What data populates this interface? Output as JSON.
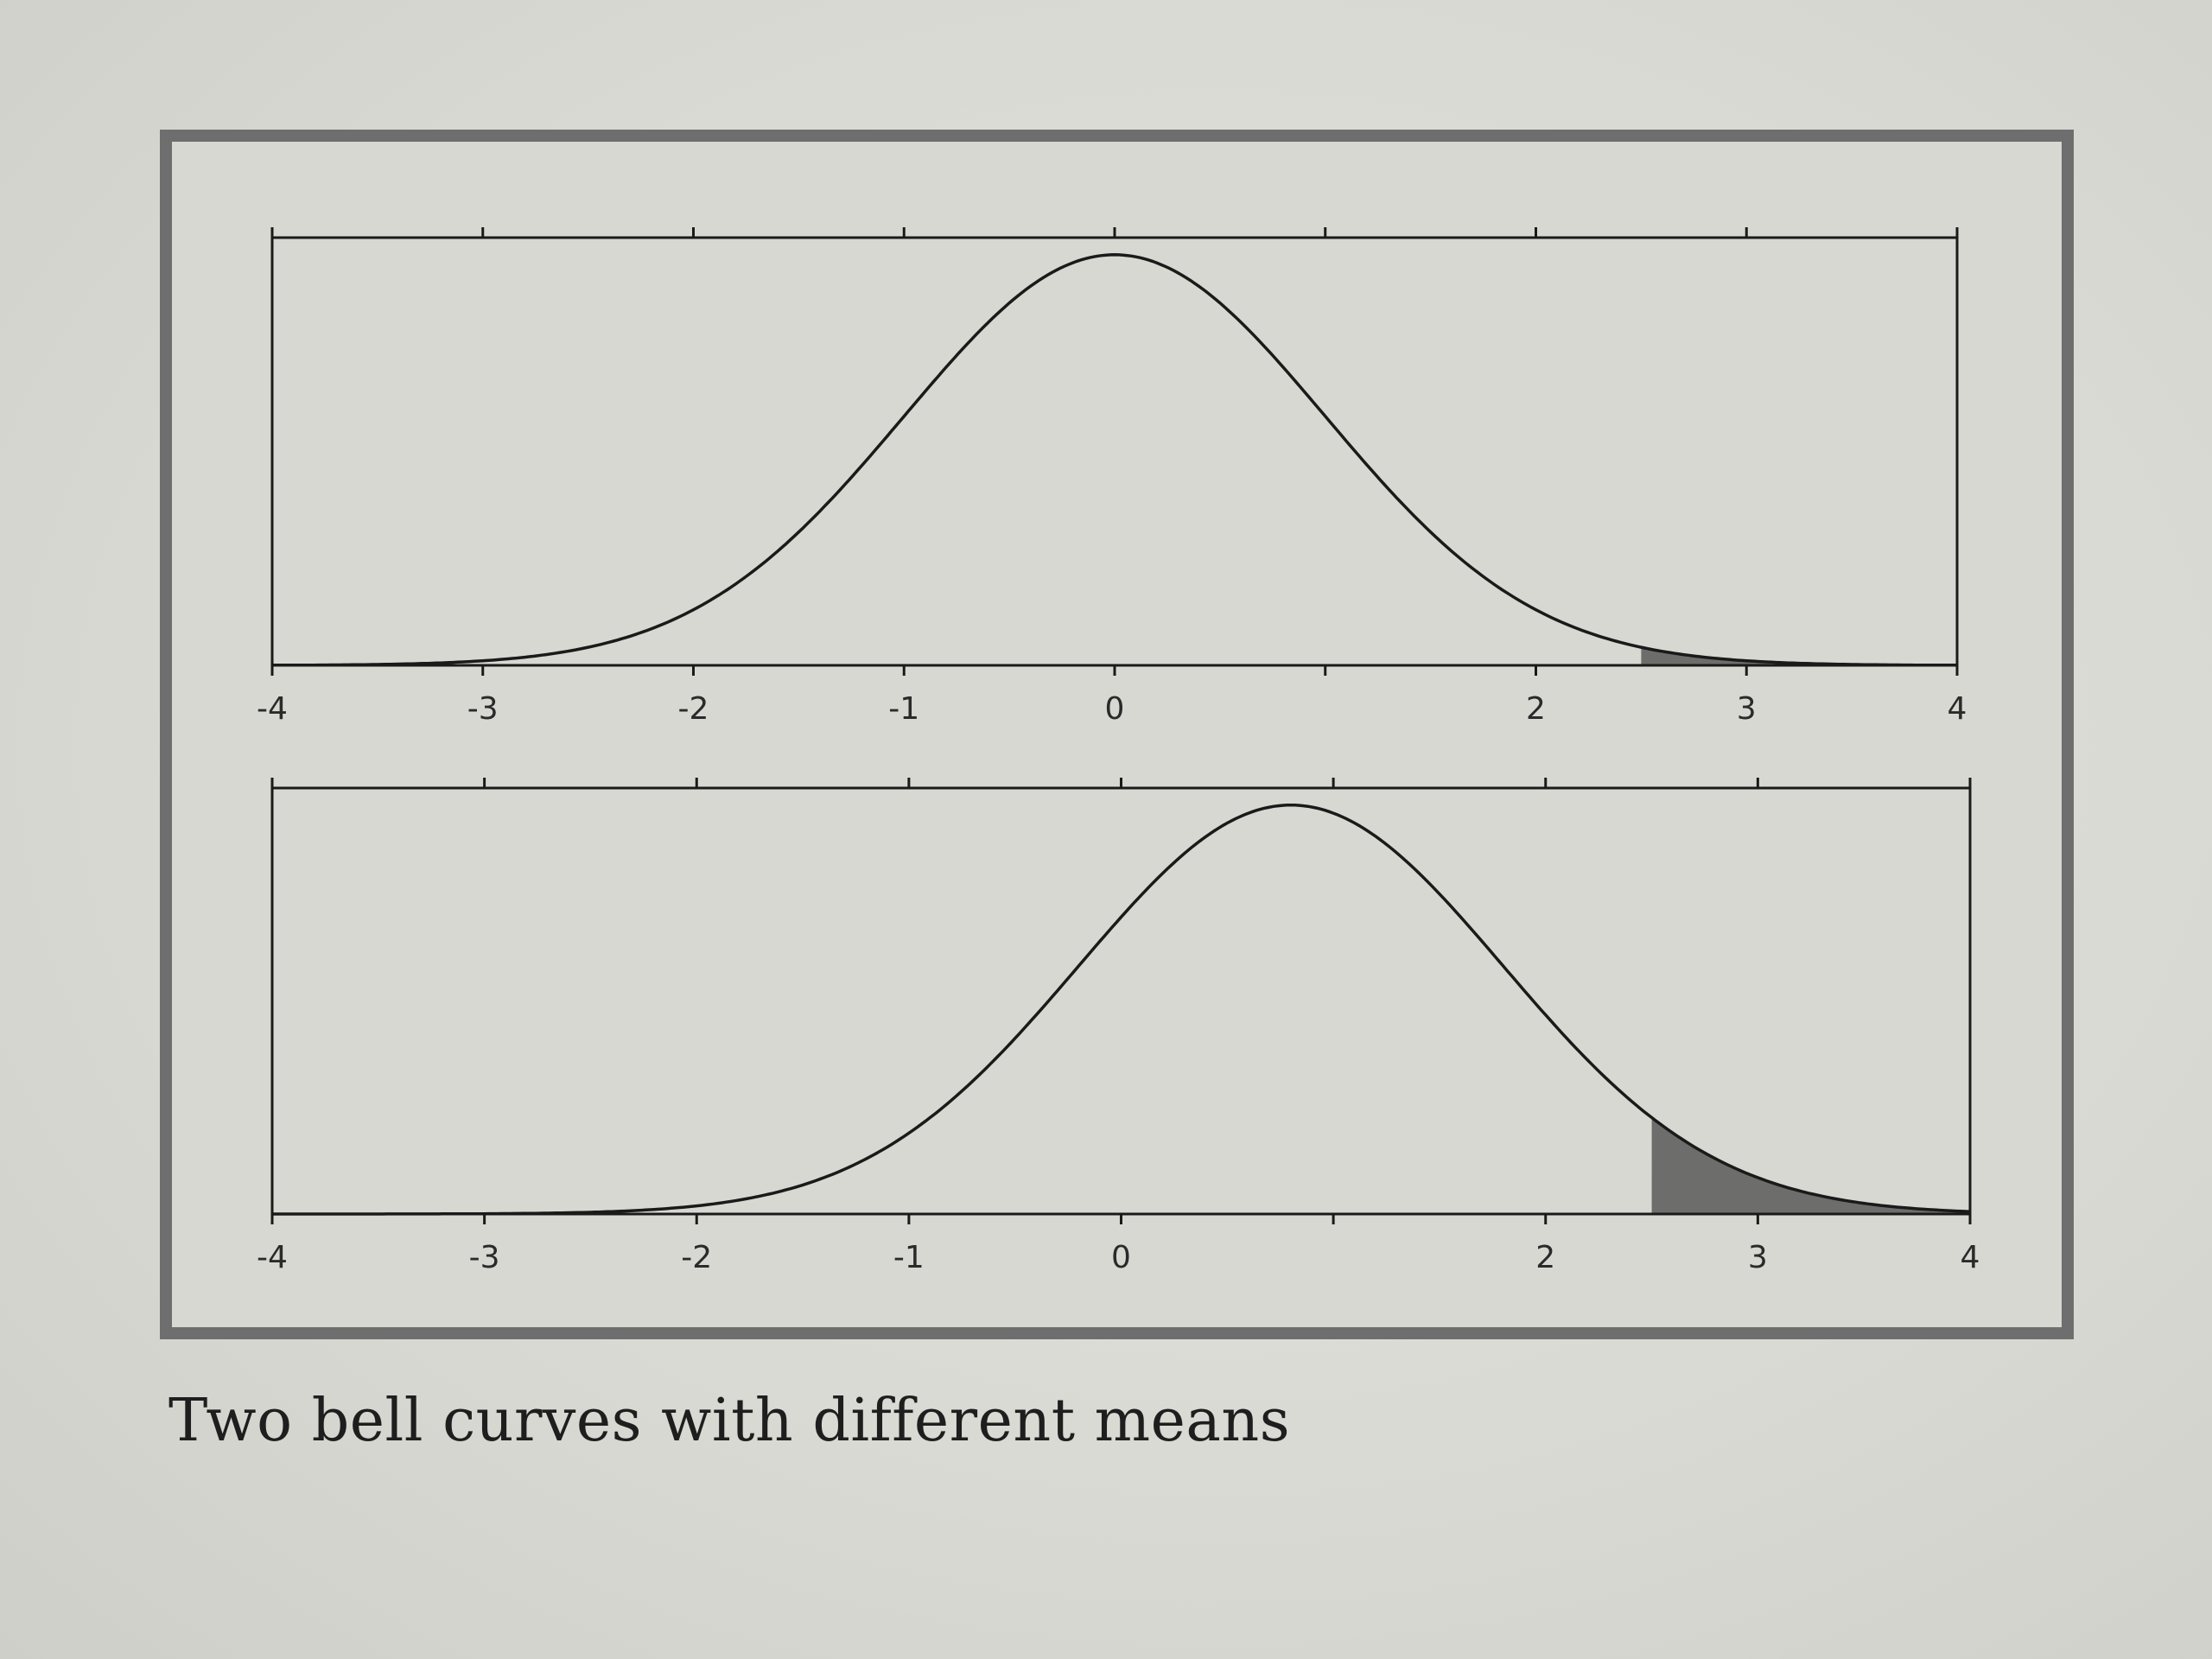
{
  "caption": "Two bell curves with different means",
  "chart_data": [
    {
      "type": "line",
      "title": "",
      "xlabel": "",
      "ylabel": "",
      "xlim": [
        -4,
        4
      ],
      "x_ticks": [
        -4,
        -3,
        -2,
        -1,
        0,
        1,
        2,
        3,
        4
      ],
      "x_tick_labels": [
        "-4",
        "-3",
        "-2",
        "-1",
        "0",
        "",
        "2",
        "3",
        "4"
      ],
      "series": [
        {
          "distribution": "normal",
          "mean": 0,
          "sd": 1,
          "shaded_from": 2.5,
          "shaded_to": 4
        }
      ],
      "grid": false,
      "colors": {
        "line": "#1a1a1a",
        "shade": "#5a5a5a"
      }
    },
    {
      "type": "line",
      "title": "",
      "xlabel": "",
      "ylabel": "",
      "xlim": [
        -4,
        4
      ],
      "x_ticks": [
        -4,
        -3,
        -2,
        -1,
        0,
        1,
        2,
        3,
        4
      ],
      "x_tick_labels": [
        "-4",
        "-3",
        "-2",
        "-1",
        "0",
        "",
        "2",
        "3",
        "4"
      ],
      "series": [
        {
          "distribution": "normal",
          "mean": 0.8,
          "sd": 1,
          "shaded_from": 2.5,
          "shaded_to": 4
        }
      ],
      "grid": false,
      "colors": {
        "line": "#1a1a1a",
        "shade": "#5a5a5a"
      }
    }
  ]
}
